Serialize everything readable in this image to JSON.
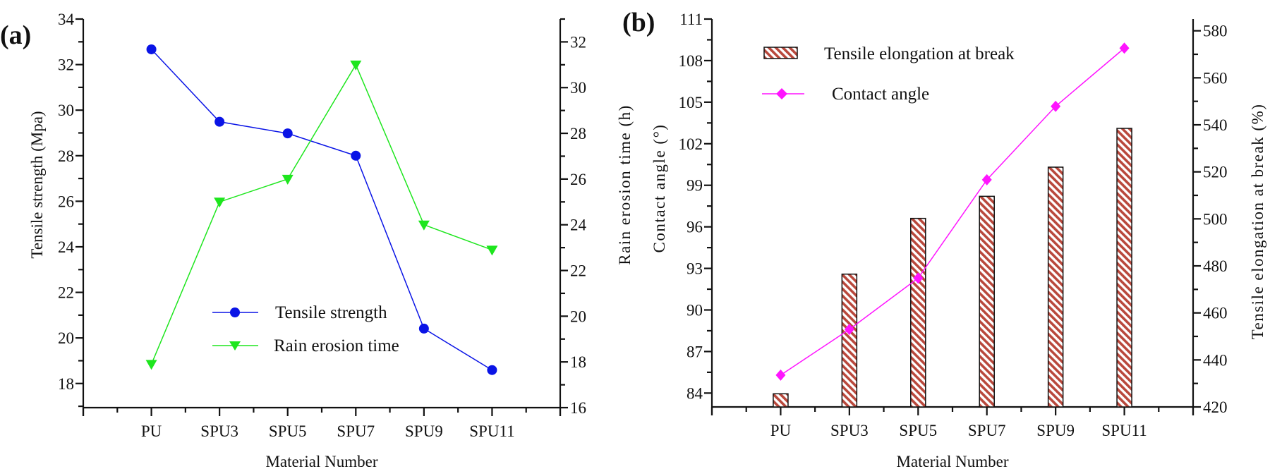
{
  "chart_data": [
    {
      "panel_label": "(a)",
      "type": "line",
      "categories": [
        "PU",
        "SPU3",
        "SPU5",
        "SPU7",
        "SPU9",
        "SPU11"
      ],
      "xlabel": "Material Number",
      "y_left": {
        "label": "Tensile strength (Mpa)",
        "range": [
          16.94,
          34.0
        ],
        "ticks": [
          "18",
          "20",
          "22",
          "24",
          "26",
          "28",
          "30",
          "32",
          "34"
        ]
      },
      "y_right": {
        "label": "Rain erosion time (h)",
        "range": [
          16,
          33.0
        ],
        "ticks": [
          "16",
          "18",
          "20",
          "22",
          "24",
          "26",
          "28",
          "30",
          "32"
        ]
      },
      "series": [
        {
          "name": "Tensile strength",
          "axis": "left",
          "marker": "circle",
          "color": "#0a14e6",
          "values": [
            32.67,
            29.49,
            28.98,
            28.0,
            20.41,
            18.59
          ]
        },
        {
          "name": "Rain erosion time",
          "axis": "right",
          "marker": "triangle-down",
          "color": "#1ee61e",
          "values": [
            17.9,
            25.0,
            26.0,
            31.0,
            24.0,
            22.9
          ]
        }
      ],
      "legend": "bottom-center",
      "grid": false
    },
    {
      "panel_label": "(b)",
      "type": "bar+line",
      "categories": [
        "PU",
        "SPU3",
        "SPU5",
        "SPU7",
        "SPU9",
        "SPU11"
      ],
      "xlabel": "Material Number",
      "y_left": {
        "label": "Contact angle (°)",
        "range": [
          83,
          111
        ],
        "ticks": [
          "84",
          "87",
          "90",
          "93",
          "96",
          "99",
          "102",
          "105",
          "108",
          "111"
        ]
      },
      "y_right": {
        "label": "Tensile elongation at break (%)",
        "range": [
          420,
          585
        ],
        "ticks": [
          "420",
          "440",
          "460",
          "480",
          "500",
          "520",
          "540",
          "560",
          "580"
        ]
      },
      "series": [
        {
          "name": "Tensile elongation at break",
          "axis": "right",
          "kind": "bar",
          "pattern": "diagonal-hatch",
          "color": "#b9483c",
          "values": [
            425.6,
            476.5,
            500.2,
            509.6,
            522.0,
            538.5
          ]
        },
        {
          "name": "Contact angle",
          "axis": "left",
          "kind": "line",
          "marker": "diamond",
          "color": "#ff14ff",
          "values": [
            85.3,
            88.6,
            92.3,
            99.4,
            104.7,
            108.9
          ]
        }
      ],
      "legend": "top-left",
      "grid": false
    }
  ]
}
